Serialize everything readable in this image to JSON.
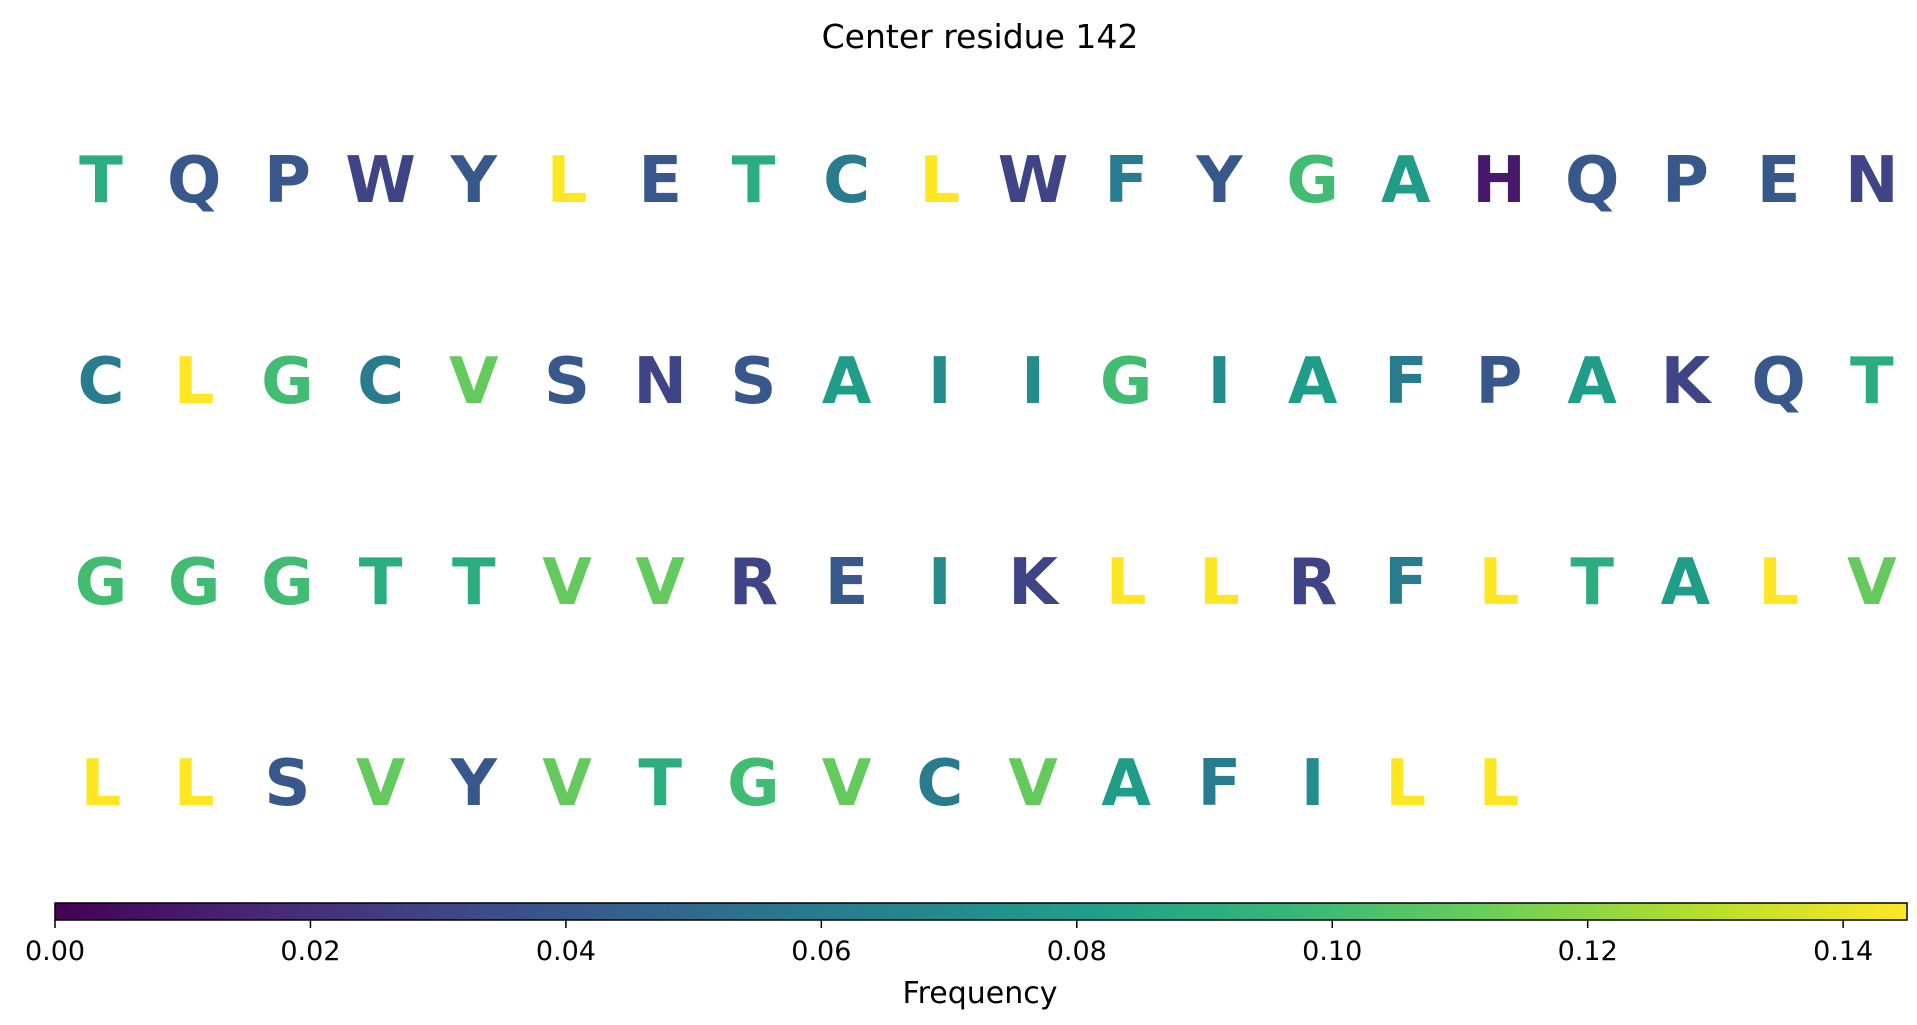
{
  "chart_data": {
    "type": "heatmap",
    "title": "Center residue 142",
    "colorbar": {
      "label": "Frequency",
      "range": [
        0,
        0.145
      ],
      "colormap": "viridis",
      "ticks": [
        0.0,
        0.02,
        0.04,
        0.06,
        0.08,
        0.1,
        0.12,
        0.14
      ],
      "tick_labels": [
        "0.00",
        "0.02",
        "0.04",
        "0.06",
        "0.08",
        "0.10",
        "0.12",
        "0.14"
      ]
    },
    "columns_per_row": 20,
    "residues": [
      {
        "letter": "T",
        "frequency": 0.09
      },
      {
        "letter": "Q",
        "frequency": 0.04
      },
      {
        "letter": "P",
        "frequency": 0.04
      },
      {
        "letter": "W",
        "frequency": 0.03
      },
      {
        "letter": "Y",
        "frequency": 0.04
      },
      {
        "letter": "L",
        "frequency": 0.145
      },
      {
        "letter": "E",
        "frequency": 0.04
      },
      {
        "letter": "T",
        "frequency": 0.09
      },
      {
        "letter": "C",
        "frequency": 0.06
      },
      {
        "letter": "L",
        "frequency": 0.145
      },
      {
        "letter": "W",
        "frequency": 0.03
      },
      {
        "letter": "F",
        "frequency": 0.06
      },
      {
        "letter": "Y",
        "frequency": 0.04
      },
      {
        "letter": "G",
        "frequency": 0.1
      },
      {
        "letter": "A",
        "frequency": 0.08
      },
      {
        "letter": "H",
        "frequency": 0.01
      },
      {
        "letter": "Q",
        "frequency": 0.04
      },
      {
        "letter": "P",
        "frequency": 0.04
      },
      {
        "letter": "E",
        "frequency": 0.04
      },
      {
        "letter": "N",
        "frequency": 0.03
      },
      {
        "letter": "C",
        "frequency": 0.06
      },
      {
        "letter": "L",
        "frequency": 0.145
      },
      {
        "letter": "G",
        "frequency": 0.1
      },
      {
        "letter": "C",
        "frequency": 0.06
      },
      {
        "letter": "V",
        "frequency": 0.11
      },
      {
        "letter": "S",
        "frequency": 0.04
      },
      {
        "letter": "N",
        "frequency": 0.03
      },
      {
        "letter": "S",
        "frequency": 0.04
      },
      {
        "letter": "A",
        "frequency": 0.08
      },
      {
        "letter": "I",
        "frequency": 0.07
      },
      {
        "letter": "I",
        "frequency": 0.07
      },
      {
        "letter": "G",
        "frequency": 0.1
      },
      {
        "letter": "I",
        "frequency": 0.07
      },
      {
        "letter": "A",
        "frequency": 0.08
      },
      {
        "letter": "F",
        "frequency": 0.06
      },
      {
        "letter": "P",
        "frequency": 0.04
      },
      {
        "letter": "A",
        "frequency": 0.08
      },
      {
        "letter": "K",
        "frequency": 0.03
      },
      {
        "letter": "Q",
        "frequency": 0.04
      },
      {
        "letter": "T",
        "frequency": 0.09
      },
      {
        "letter": "G",
        "frequency": 0.1
      },
      {
        "letter": "G",
        "frequency": 0.1
      },
      {
        "letter": "G",
        "frequency": 0.1
      },
      {
        "letter": "T",
        "frequency": 0.09
      },
      {
        "letter": "T",
        "frequency": 0.09
      },
      {
        "letter": "V",
        "frequency": 0.11
      },
      {
        "letter": "V",
        "frequency": 0.11
      },
      {
        "letter": "R",
        "frequency": 0.03
      },
      {
        "letter": "E",
        "frequency": 0.04
      },
      {
        "letter": "I",
        "frequency": 0.07
      },
      {
        "letter": "K",
        "frequency": 0.03
      },
      {
        "letter": "L",
        "frequency": 0.145
      },
      {
        "letter": "L",
        "frequency": 0.145
      },
      {
        "letter": "R",
        "frequency": 0.03
      },
      {
        "letter": "F",
        "frequency": 0.06
      },
      {
        "letter": "L",
        "frequency": 0.145
      },
      {
        "letter": "T",
        "frequency": 0.09
      },
      {
        "letter": "A",
        "frequency": 0.08
      },
      {
        "letter": "L",
        "frequency": 0.145
      },
      {
        "letter": "V",
        "frequency": 0.11
      },
      {
        "letter": "L",
        "frequency": 0.145
      },
      {
        "letter": "L",
        "frequency": 0.145
      },
      {
        "letter": "S",
        "frequency": 0.04
      },
      {
        "letter": "V",
        "frequency": 0.11
      },
      {
        "letter": "Y",
        "frequency": 0.04
      },
      {
        "letter": "V",
        "frequency": 0.11
      },
      {
        "letter": "T",
        "frequency": 0.09
      },
      {
        "letter": "G",
        "frequency": 0.1
      },
      {
        "letter": "V",
        "frequency": 0.11
      },
      {
        "letter": "C",
        "frequency": 0.06
      },
      {
        "letter": "V",
        "frequency": 0.11
      },
      {
        "letter": "A",
        "frequency": 0.08
      },
      {
        "letter": "F",
        "frequency": 0.06
      },
      {
        "letter": "I",
        "frequency": 0.07
      },
      {
        "letter": "L",
        "frequency": 0.145
      },
      {
        "letter": "L",
        "frequency": 0.145
      }
    ]
  }
}
